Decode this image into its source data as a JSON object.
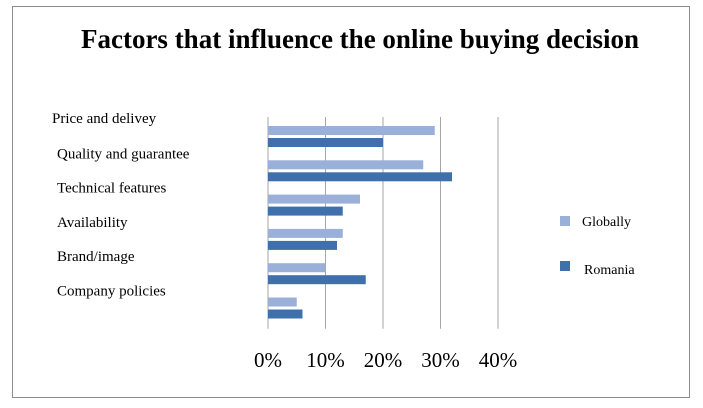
{
  "chart_data": {
    "type": "bar",
    "orientation": "horizontal",
    "title": "Factors that influence the online buying decision",
    "categories": [
      "Price and delivey",
      "Quality and guarantee",
      "Technical features",
      "Availability",
      "Brand/image",
      "Company policies"
    ],
    "series": [
      {
        "name": "Globally",
        "color": "#9ab0d8",
        "values": [
          29,
          27,
          16,
          13,
          10,
          5
        ]
      },
      {
        "name": "Romania",
        "color": "#3f70ab",
        "values": [
          20,
          32,
          13,
          12,
          17,
          6
        ]
      }
    ],
    "xticks": [
      "0%",
      "10%",
      "20%",
      "30%",
      "40%"
    ],
    "xlim": [
      0,
      40
    ],
    "grid": true,
    "legend_position": "right"
  }
}
